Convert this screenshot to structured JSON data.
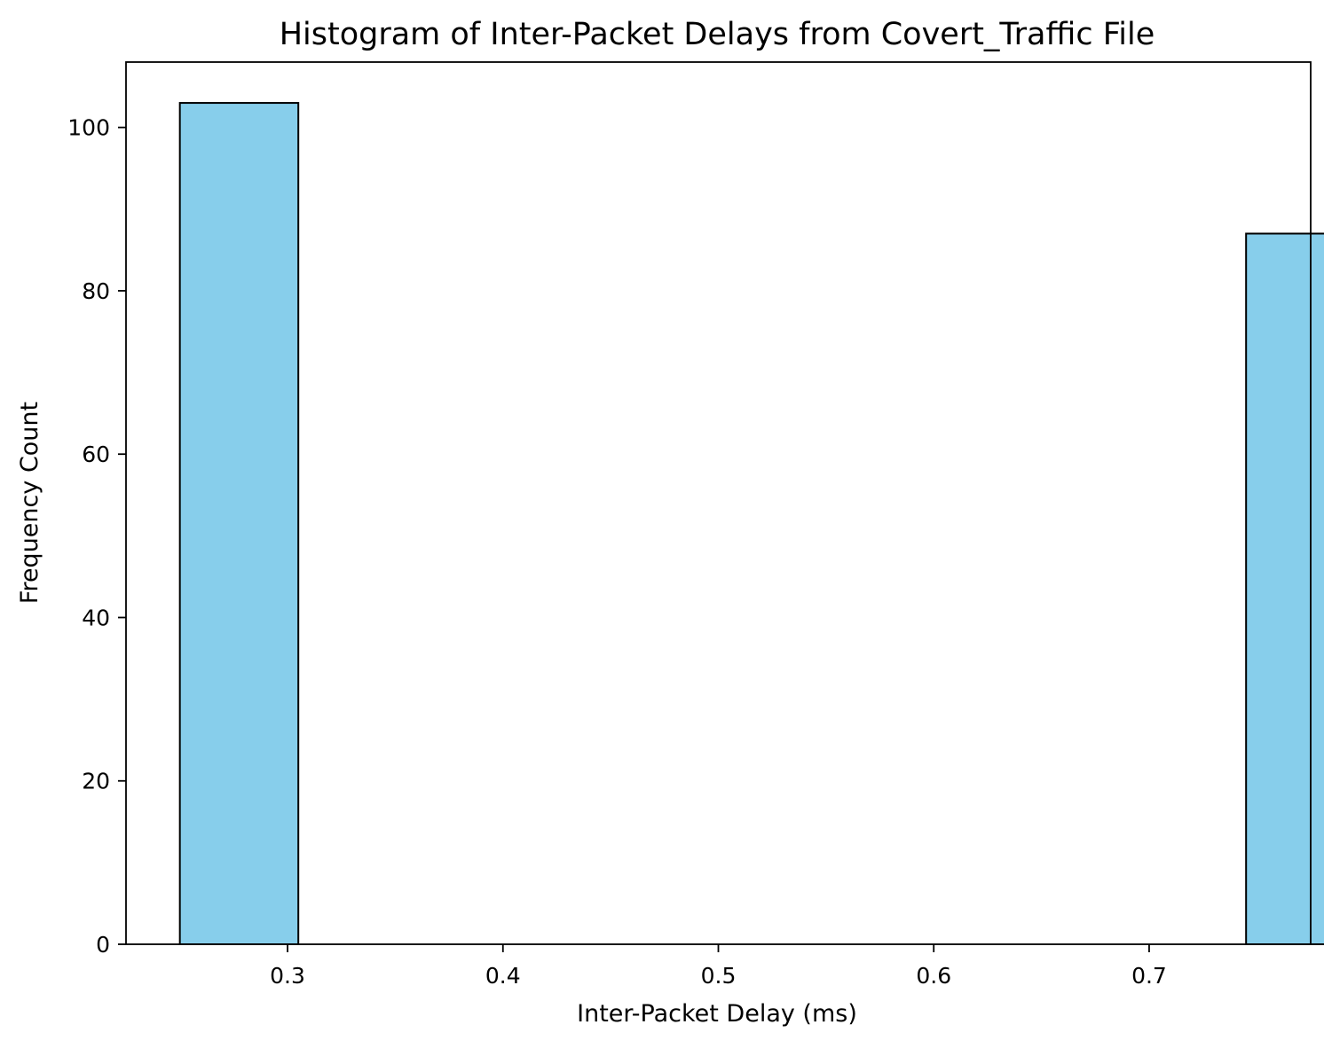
{
  "chart_data": {
    "type": "bar",
    "title": "Histogram of Inter-Packet Delays from Covert_Traffic File",
    "xlabel": "Inter-Packet Delay (ms)",
    "ylabel": "Frequency Count",
    "xlim": [
      0.225,
      0.775
    ],
    "ylim": [
      0,
      108
    ],
    "x_ticks": [
      0.3,
      0.4,
      0.5,
      0.6,
      0.7
    ],
    "x_tick_labels": [
      "0.3",
      "0.4",
      "0.5",
      "0.6",
      "0.7"
    ],
    "y_ticks": [
      0,
      20,
      40,
      60,
      80,
      100
    ],
    "y_tick_labels": [
      "0",
      "20",
      "40",
      "60",
      "80",
      "100"
    ],
    "bins": [
      {
        "x_start": 0.25,
        "x_end": 0.305,
        "count": 103
      },
      {
        "x_start": 0.305,
        "x_end": 0.36,
        "count": 0
      },
      {
        "x_start": 0.36,
        "x_end": 0.415,
        "count": 0
      },
      {
        "x_start": 0.415,
        "x_end": 0.47,
        "count": 0
      },
      {
        "x_start": 0.47,
        "x_end": 0.525,
        "count": 0
      },
      {
        "x_start": 0.525,
        "x_end": 0.58,
        "count": 0
      },
      {
        "x_start": 0.58,
        "x_end": 0.635,
        "count": 0
      },
      {
        "x_start": 0.635,
        "x_end": 0.69,
        "count": 0
      },
      {
        "x_start": 0.69,
        "x_end": 0.745,
        "count": 0
      },
      {
        "x_start": 0.745,
        "x_end": 0.8,
        "count": 87
      }
    ],
    "grid": false,
    "colors": {
      "bar_fill": "#87ceeb",
      "bar_edge": "#000000",
      "axis": "#000000"
    }
  }
}
